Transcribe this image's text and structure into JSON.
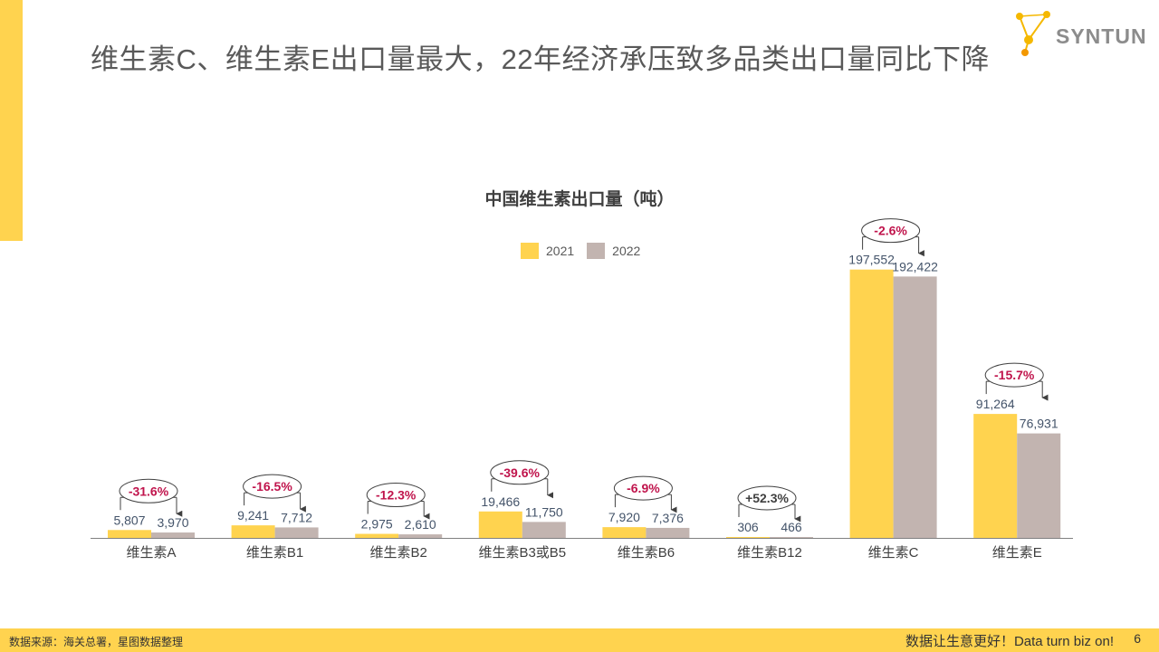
{
  "header": {
    "title": "维生素C、维生素E出口量最大，22年经济承压致多品类出口量同比下降",
    "brand": "SYNTUN"
  },
  "colors": {
    "accent": "#ffd34f",
    "bar_2021": "#ffd34f",
    "bar_2022": "#c2b4b0",
    "change_label": "#c0144c",
    "value_label": "#44546a"
  },
  "chart_data": {
    "type": "bar",
    "title": "中国维生素出口量（吨）",
    "categories": [
      "维生素A",
      "维生素B1",
      "维生素B2",
      "维生素B3或B5",
      "维生素B6",
      "维生素B12",
      "维生素C",
      "维生素E"
    ],
    "series": [
      {
        "name": "2021",
        "values": [
          5807,
          9241,
          2975,
          19466,
          7920,
          306,
          197552,
          91264
        ],
        "labels": [
          "5,807",
          "9,241",
          "2,975",
          "19,466",
          "7,920",
          "306",
          "197,552",
          "91,264"
        ]
      },
      {
        "name": "2022",
        "values": [
          3970,
          7712,
          2610,
          11750,
          7376,
          466,
          192422,
          76931
        ],
        "labels": [
          "3,970",
          "7,712",
          "2,610",
          "11,750",
          "7,376",
          "466",
          "192,422",
          "76,931"
        ]
      }
    ],
    "changes": [
      "-31.6%",
      "-16.5%",
      "-12.3%",
      "-39.6%",
      "-6.9%",
      "+52.3%",
      "-2.6%",
      "-15.7%"
    ],
    "legend_position": "top-center",
    "xlabel": "",
    "ylabel": ""
  },
  "footer": {
    "source": "数据来源：海关总署，星图数据整理",
    "slogan": "数据让生意更好！Data turn biz on!",
    "page": "6"
  }
}
